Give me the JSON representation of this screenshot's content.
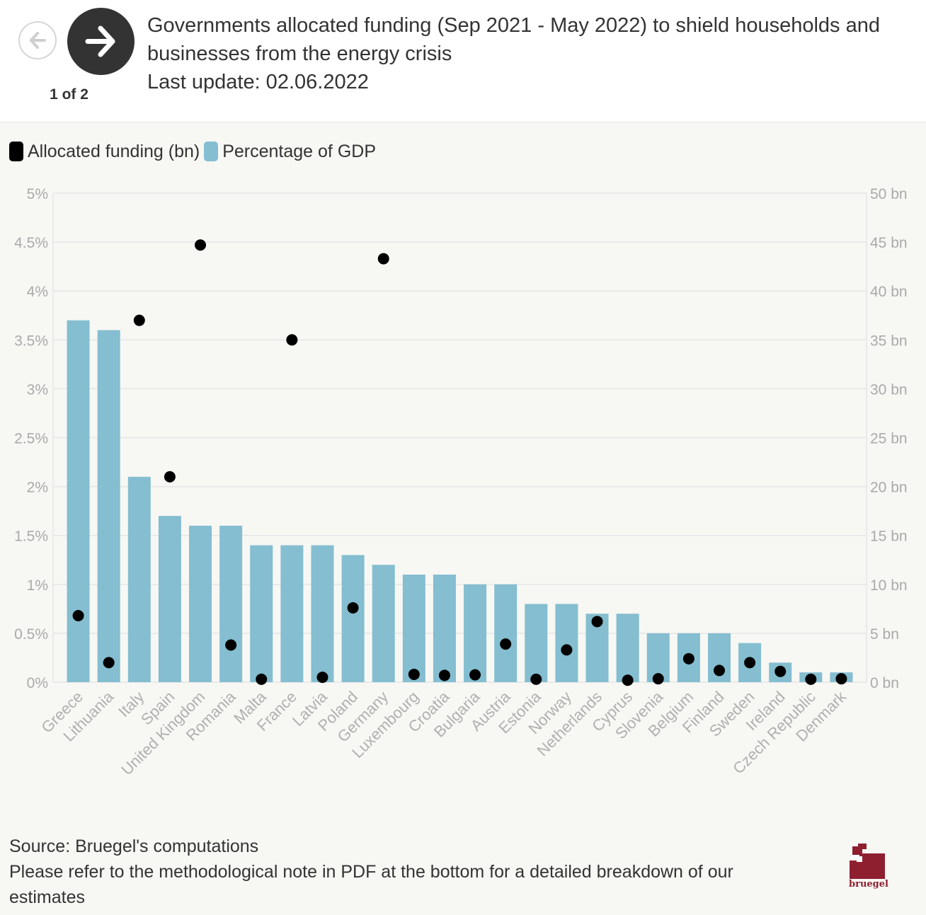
{
  "header": {
    "title_lines": [
      "Governments allocated funding (Sep 2021 - May 2022) to shield households and",
      "businesses from the energy crisis",
      "Last update: 02.06.2022"
    ],
    "pager": "1 of 2"
  },
  "legend": {
    "items": [
      {
        "label": "Allocated funding (bn)",
        "color": "#000000"
      },
      {
        "label": "Percentage of GDP",
        "color": "#84bed0"
      }
    ]
  },
  "chart_data": {
    "type": "bar",
    "categories": [
      "Greece",
      "Lithuania",
      "Italy",
      "Spain",
      "United Kingdom",
      "Romania",
      "Malta",
      "France",
      "Latvia",
      "Poland",
      "Germany",
      "Luxembourg",
      "Croatia",
      "Bulgaria",
      "Austria",
      "Estonia",
      "Norway",
      "Netherlands",
      "Cyprus",
      "Slovenia",
      "Belgium",
      "Finland",
      "Sweden",
      "Ireland",
      "Czech Republic",
      "Denmark"
    ],
    "series": [
      {
        "name": "Percentage of GDP",
        "kind": "bar",
        "axis": "left",
        "color": "#84bed0",
        "values": [
          3.7,
          3.6,
          2.1,
          1.7,
          1.6,
          1.6,
          1.4,
          1.4,
          1.4,
          1.3,
          1.2,
          1.1,
          1.1,
          1.0,
          1.0,
          0.8,
          0.8,
          0.7,
          0.7,
          0.5,
          0.5,
          0.5,
          0.4,
          0.2,
          0.1,
          0.1
        ]
      },
      {
        "name": "Allocated funding (bn)",
        "kind": "dot",
        "axis": "right",
        "color": "#000000",
        "values": [
          6.8,
          2.0,
          37.0,
          21.0,
          44.7,
          3.8,
          0.3,
          35.0,
          0.5,
          7.6,
          43.3,
          0.8,
          0.7,
          0.75,
          3.9,
          0.3,
          3.3,
          6.2,
          0.2,
          0.35,
          2.4,
          1.2,
          2.0,
          1.1,
          0.3,
          0.35
        ]
      }
    ],
    "left_axis": {
      "min": 0,
      "max": 5,
      "ticks": [
        "0%",
        "0.5%",
        "1%",
        "1.5%",
        "2%",
        "2.5%",
        "3%",
        "3.5%",
        "4%",
        "4.5%",
        "5%"
      ]
    },
    "right_axis": {
      "min": 0,
      "max": 50,
      "ticks": [
        "0 bn",
        "5 bn",
        "10 bn",
        "15 bn",
        "20 bn",
        "25 bn",
        "30 bn",
        "35 bn",
        "40 bn",
        "45 bn",
        "50 bn"
      ]
    },
    "grid": true,
    "legend_position": "top-left"
  },
  "footer": {
    "lines": [
      "Source: Bruegel's computations",
      "Please refer to the methodological note in PDF at the bottom for a detailed breakdown of our",
      "estimates"
    ]
  },
  "logo": {
    "text": "bruegel",
    "color": "#8e1f2f"
  }
}
